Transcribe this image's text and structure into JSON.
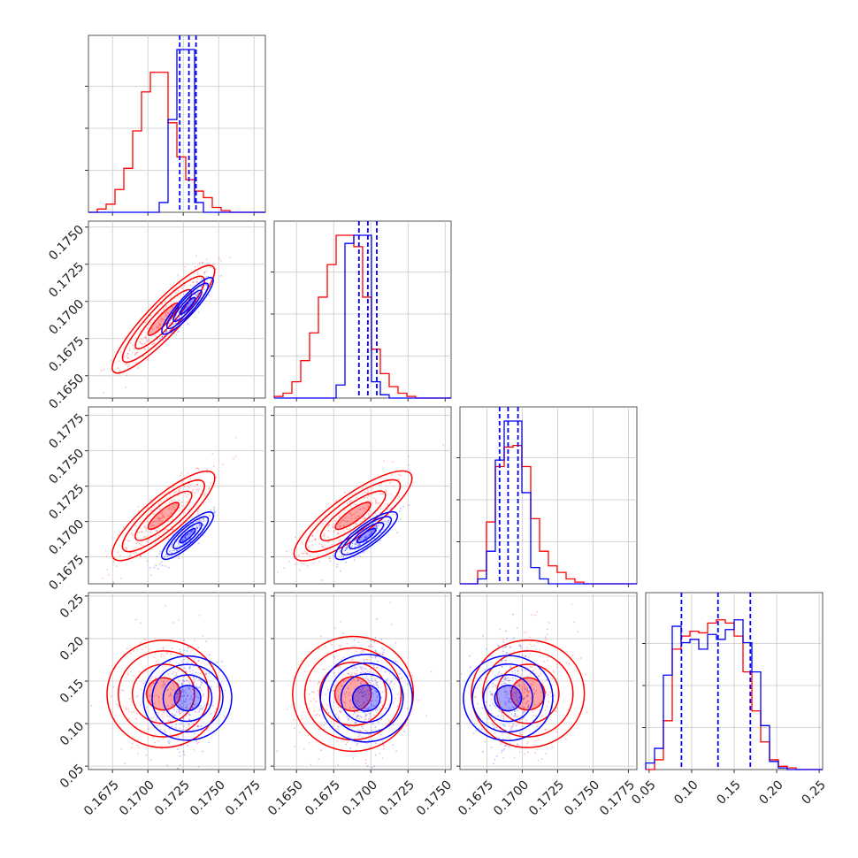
{
  "chart_data": {
    "type": "corner",
    "title": "",
    "dimensions": 4,
    "colors": {
      "primary": "#0000ff",
      "secondary": "#ff0000"
    },
    "series": [
      {
        "color": "#0000ff",
        "centers": [
          0.1728,
          0.1697,
          0.169,
          0.13
        ],
        "spreads": [
          0.00085,
          0.001,
          0.0009,
          0.033
        ],
        "quantile_lines": true
      },
      {
        "color": "#ff0000",
        "centers": [
          0.1711,
          0.1688,
          0.1704,
          0.135
        ],
        "spreads": [
          0.0017,
          0.0019,
          0.0017,
          0.036
        ],
        "quantile_lines": false
      }
    ],
    "axes": [
      {
        "range": [
          0.1658,
          0.1783
        ],
        "ticks": [
          0.1675,
          0.17,
          0.1725,
          0.175,
          0.1775
        ],
        "tick_labels": [
          "0.1675",
          "0.1700",
          "0.1725",
          "0.1750",
          "0.1775"
        ]
      },
      {
        "range": [
          0.1635,
          0.1754
        ],
        "ticks": [
          0.165,
          0.1675,
          0.17,
          0.1725,
          0.175
        ],
        "tick_labels": [
          "0.1650",
          "0.1675",
          "0.1700",
          "0.1725",
          "0.1750"
        ]
      },
      {
        "range": [
          0.1656,
          0.1781
        ],
        "ticks": [
          0.1675,
          0.17,
          0.1725,
          0.175,
          0.1775
        ],
        "tick_labels": [
          "0.1675",
          "0.1700",
          "0.1725",
          "0.1750",
          "0.1775"
        ]
      },
      {
        "range": [
          0.046,
          0.254
        ],
        "ticks": [
          0.05,
          0.1,
          0.15,
          0.2,
          0.25
        ],
        "tick_labels": [
          "0.05",
          "0.10",
          "0.15",
          "0.20",
          "0.25"
        ]
      }
    ],
    "quantile_lines_blue": [
      [
        0.17225,
        0.1729,
        0.1734
      ],
      [
        0.1692,
        0.1698,
        0.1704
      ],
      [
        0.1684,
        0.169,
        0.1697
      ],
      [
        0.088,
        0.131,
        0.169
      ]
    ],
    "histograms": [
      {
        "blue": [
          0,
          0,
          0,
          0,
          0,
          0,
          0,
          0,
          0.06,
          0.57,
          1.0,
          1.0,
          0.06,
          0,
          0,
          0,
          0,
          0,
          0,
          0
        ],
        "red": [
          0,
          0.02,
          0.05,
          0.14,
          0.27,
          0.5,
          0.74,
          0.86,
          0.86,
          0.55,
          0.34,
          0.2,
          0.13,
          0.09,
          0.03,
          0.01,
          0,
          0,
          0,
          0
        ]
      },
      {
        "blue": [
          0,
          0,
          0,
          0,
          0,
          0,
          0,
          0.08,
          0.95,
          1.0,
          1.0,
          0.1,
          0.02,
          0,
          0,
          0,
          0,
          0,
          0,
          0
        ],
        "red": [
          0.01,
          0.03,
          0.1,
          0.23,
          0.4,
          0.62,
          0.82,
          1.0,
          1.0,
          0.93,
          0.62,
          0.3,
          0.15,
          0.07,
          0.03,
          0.01,
          0,
          0,
          0,
          0
        ]
      },
      {
        "blue": [
          0,
          0,
          0.03,
          0.2,
          0.76,
          1.0,
          1.0,
          0.56,
          0.1,
          0.03,
          0,
          0,
          0,
          0,
          0,
          0,
          0,
          0,
          0,
          0
        ],
        "red": [
          0,
          0,
          0.08,
          0.38,
          0.72,
          0.84,
          0.85,
          0.72,
          0.4,
          0.2,
          0.11,
          0.07,
          0.03,
          0.01,
          0,
          0,
          0,
          0,
          0,
          0
        ]
      },
      {
        "blue": [
          0.04,
          0.13,
          0.58,
          0.88,
          0.78,
          0.8,
          0.74,
          0.83,
          0.8,
          0.86,
          0.92,
          0.78,
          0.6,
          0.27,
          0.05,
          0.01,
          0,
          0,
          0,
          0
        ],
        "red": [
          0,
          0.06,
          0.3,
          0.74,
          0.82,
          0.85,
          0.84,
          0.9,
          0.92,
          0.9,
          0.82,
          0.6,
          0.36,
          0.17,
          0.06,
          0.02,
          0.01,
          0,
          0,
          0
        ]
      }
    ]
  }
}
